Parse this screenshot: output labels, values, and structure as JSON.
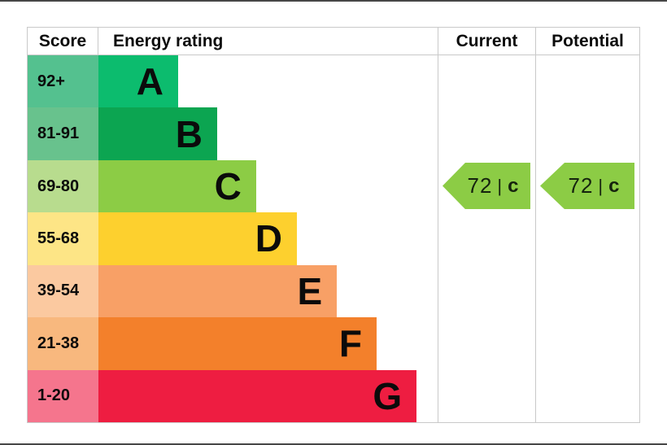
{
  "header": {
    "score": "Score",
    "rating": "Energy rating",
    "current": "Current",
    "potential": "Potential"
  },
  "bands": [
    {
      "label": "92+",
      "letter": "A",
      "cell_color": "#54c18f",
      "bar_color": "#0cbc6e",
      "bar_width": "23.5%"
    },
    {
      "label": "81-91",
      "letter": "B",
      "cell_color": "#68c28d",
      "bar_color": "#0ca551",
      "bar_width": "35.0%"
    },
    {
      "label": "69-80",
      "letter": "C",
      "cell_color": "#b8dc8e",
      "bar_color": "#8ccc45",
      "bar_width": "46.5%"
    },
    {
      "label": "55-68",
      "letter": "D",
      "cell_color": "#fde586",
      "bar_color": "#fdd02e",
      "bar_width": "58.5%"
    },
    {
      "label": "39-54",
      "letter": "E",
      "cell_color": "#fbc9a0",
      "bar_color": "#f8a066",
      "bar_width": "70.3%"
    },
    {
      "label": "21-38",
      "letter": "F",
      "cell_color": "#f8b87e",
      "bar_color": "#f3802b",
      "bar_width": "82.0%"
    },
    {
      "label": "1-20",
      "letter": "G",
      "cell_color": "#f5758d",
      "bar_color": "#ee1d41",
      "bar_width": "93.8%"
    }
  ],
  "arrows": {
    "current": {
      "value": "72",
      "divider": "|",
      "letter": "c",
      "color": "#8ccc45"
    },
    "potential": {
      "value": "72",
      "divider": "|",
      "letter": "c",
      "color": "#8ccc45"
    }
  },
  "chart_data": {
    "type": "bar",
    "categories": [
      "A",
      "B",
      "C",
      "D",
      "E",
      "F",
      "G"
    ],
    "score_ranges": [
      "92+",
      "81-91",
      "69-80",
      "55-68",
      "39-54",
      "21-38",
      "1-20"
    ],
    "bar_lengths_pct": [
      23.5,
      35.0,
      46.5,
      58.5,
      70.3,
      82.0,
      93.8
    ],
    "band_colors": [
      "#0cbc6e",
      "#0ca551",
      "#8ccc45",
      "#fdd02e",
      "#f8a066",
      "#f3802b",
      "#ee1d41"
    ],
    "column_headers": [
      "Score",
      "Energy rating",
      "Current",
      "Potential"
    ],
    "current": {
      "score": 72,
      "rating": "C"
    },
    "potential": {
      "score": 72,
      "rating": "C"
    },
    "legend_position": "none",
    "grid": false
  }
}
